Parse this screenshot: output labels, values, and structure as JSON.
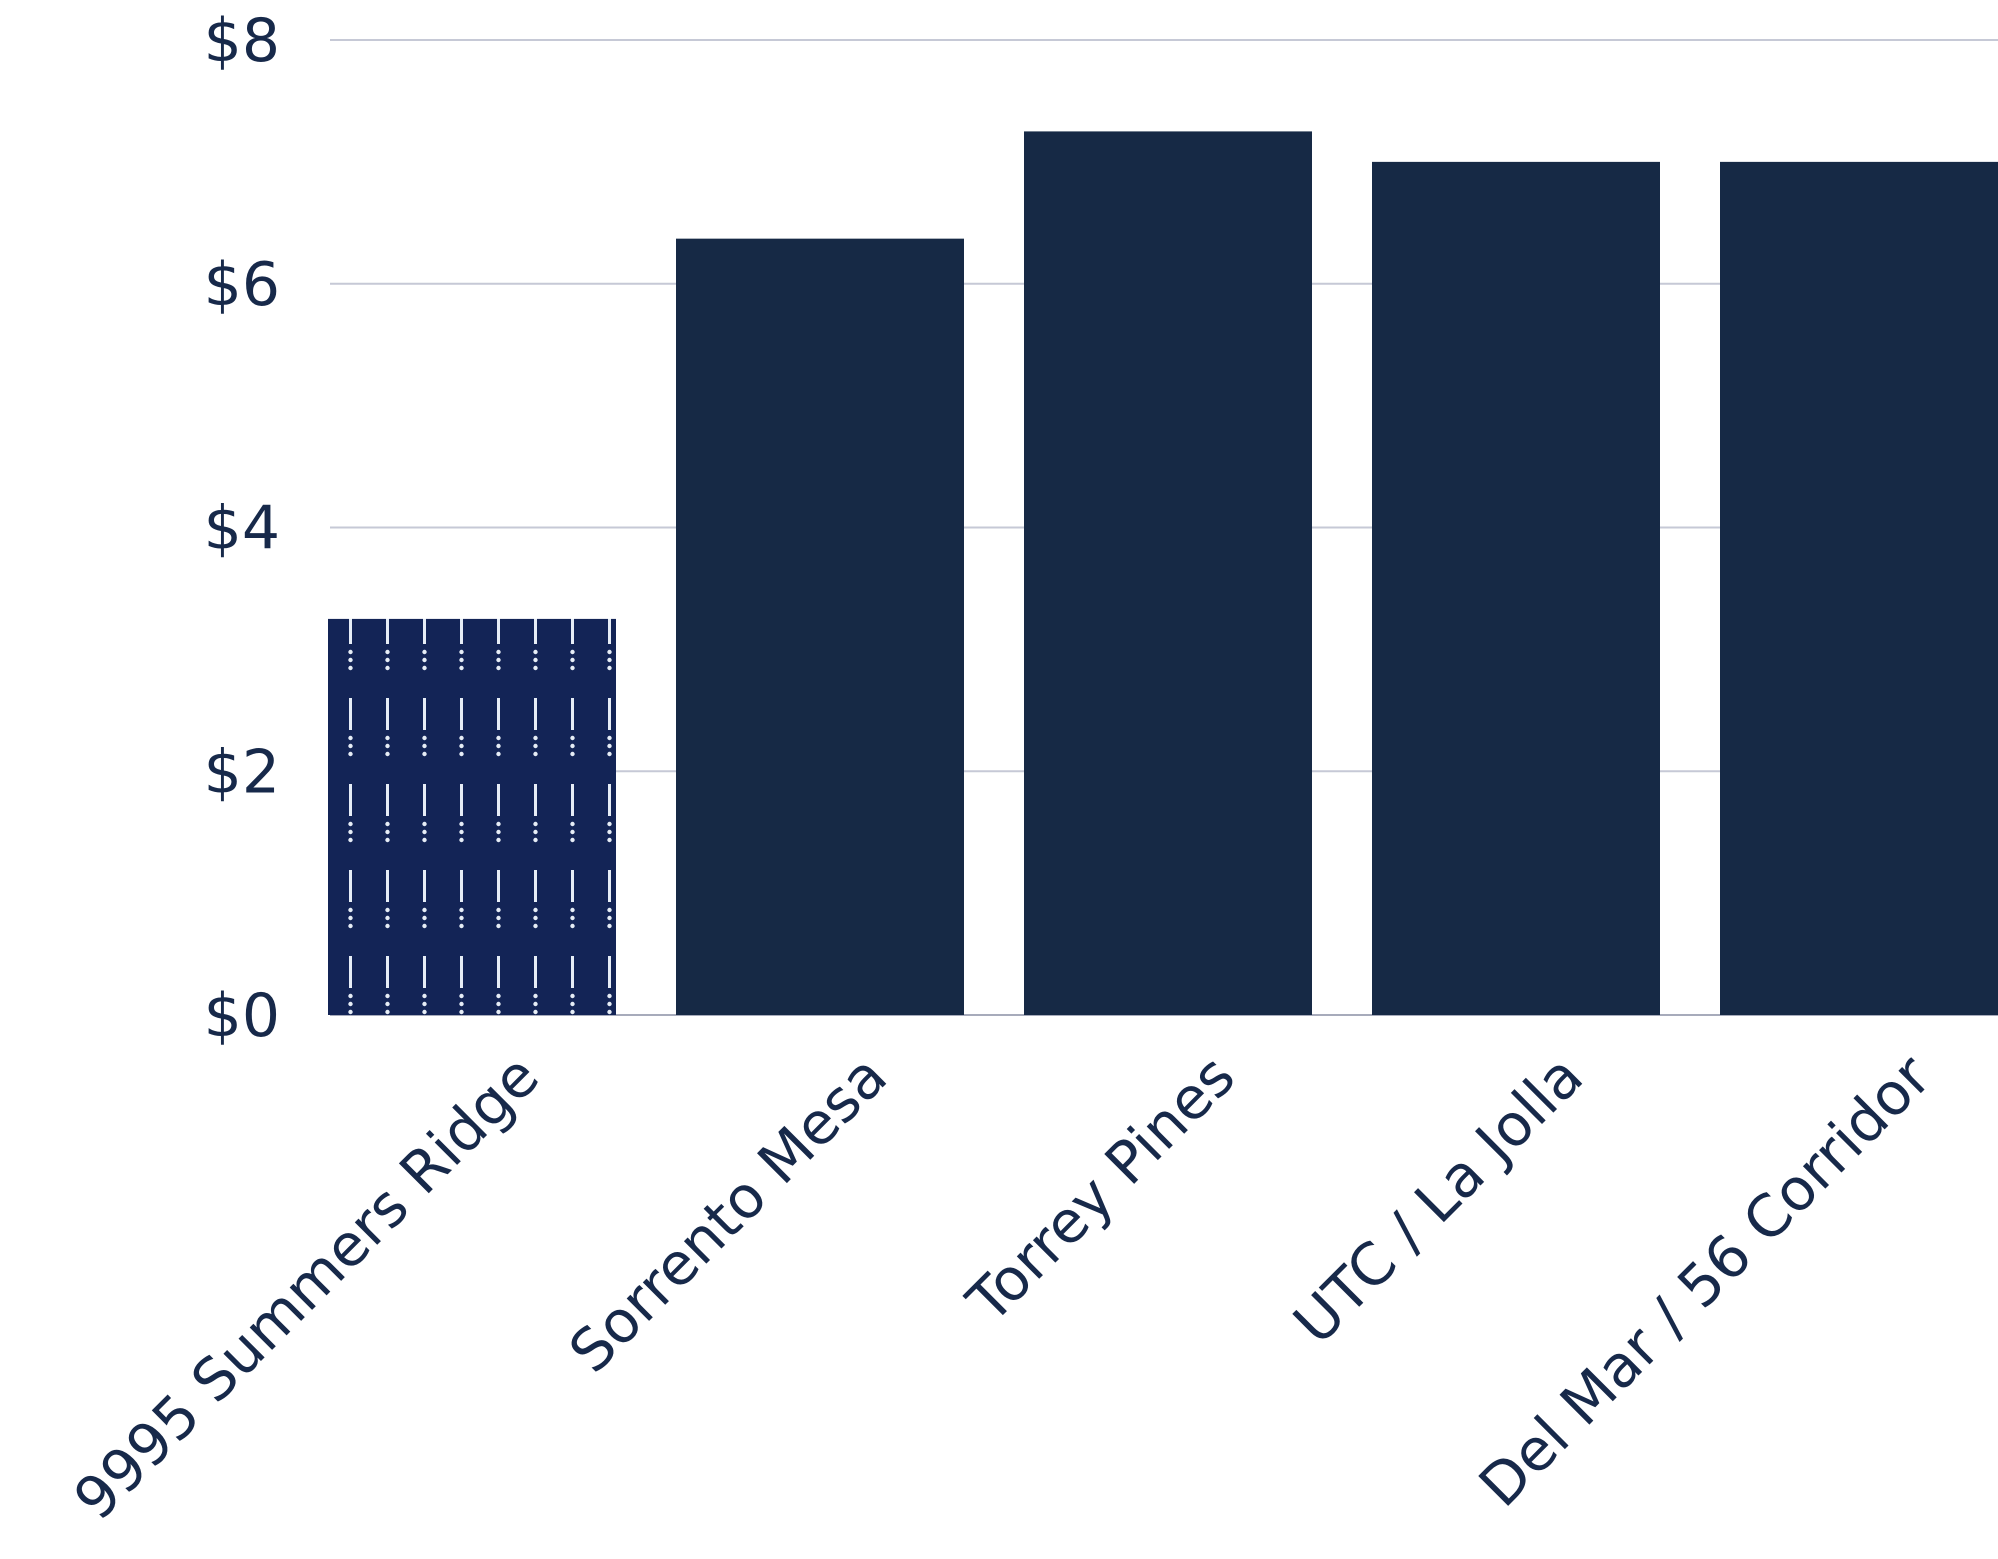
{
  "chart_data": {
    "type": "bar",
    "title": "",
    "xlabel": "",
    "ylabel": "",
    "ylim": [
      0,
      8
    ],
    "yticks": [
      0,
      2,
      4,
      6,
      8
    ],
    "ytick_labels": [
      "$0",
      "$2",
      "$4",
      "$6",
      "$8"
    ],
    "categories": [
      "9995 Summers Ridge",
      "Sorrento Mesa",
      "Torrey Pines",
      "UTC / La Jolla",
      "Del Mar / 56 Corridor"
    ],
    "values": [
      3.25,
      6.37,
      7.25,
      7.0,
      7.0
    ],
    "grid": true,
    "colors": {
      "bar": "#162945",
      "highlight_bar": "#132456",
      "highlight_pattern": "#e6edf6",
      "text": "#17294a",
      "grid": "#c6c9d6"
    },
    "highlight_index": 0
  }
}
